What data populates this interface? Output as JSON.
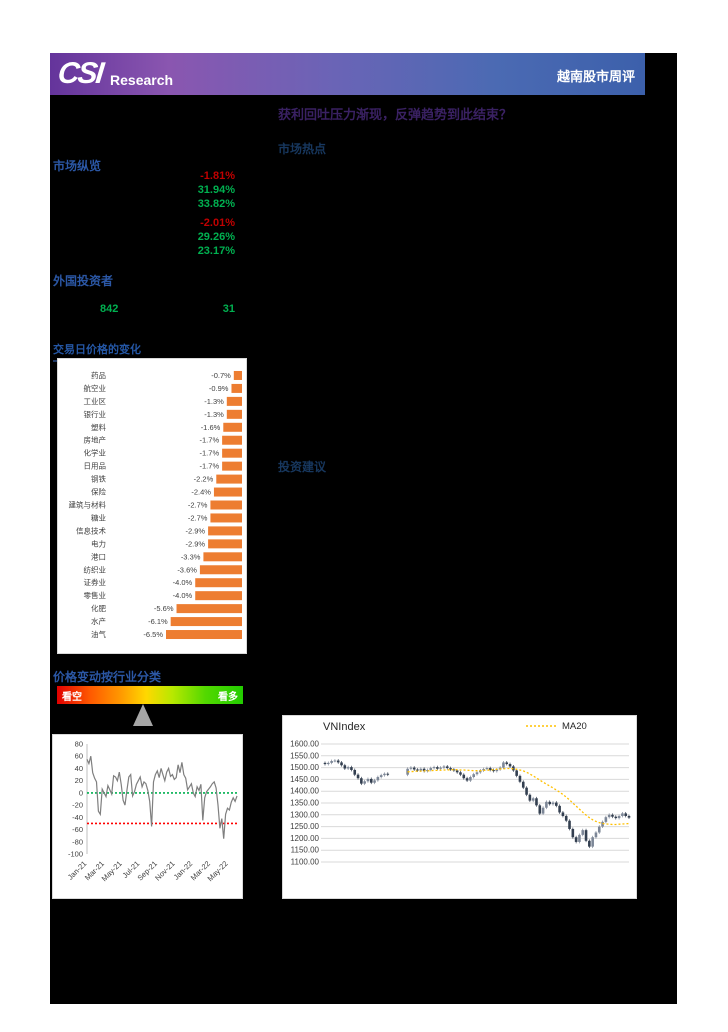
{
  "header": {
    "logo_primary": "CSI",
    "logo_secondary": "Research",
    "report_title": "越南股市周评"
  },
  "headline": "获利回吐压力渐现，反弹趋势到此结束？",
  "left_panel": {
    "market_overview": {
      "title": "市场纵览",
      "stats": [
        {
          "value": "-1.81%",
          "tone": "neg"
        },
        {
          "value": "31.94%",
          "tone": "pos"
        },
        {
          "value": "33.82%",
          "tone": "pos"
        },
        {
          "value": "-2.01%",
          "tone": "neg",
          "gap_before": true
        },
        {
          "value": "29.26%",
          "tone": "pos"
        },
        {
          "value": "23.17%",
          "tone": "pos"
        }
      ]
    },
    "foreign_investors": {
      "title": "外国投资者",
      "value_left": "842",
      "value_right": "31"
    },
    "sector_change_title": "交易日价格的变化",
    "sentiment_gauge": {
      "title": "价格变动按行业分类",
      "left_label": "看空",
      "right_label": "看多",
      "pointer_percent": 46
    }
  },
  "right_panel": {
    "hotspot_title": "市场热点",
    "advice_title": "投资建议"
  },
  "colors": {
    "negative": "#c00000",
    "positive": "#00b050",
    "accent_blue": "#2456a4",
    "bar_orange": "#ed7d31",
    "ma20_gold": "#ffc000",
    "candle_dark": "#333f50",
    "candle_light": "#7d8797",
    "series_gray": "#7f7f7f"
  },
  "chart_data": [
    {
      "id": "sector_bar",
      "type": "bar",
      "orientation": "horizontal",
      "axis_zero": "right",
      "bar_color": "#ed7d31",
      "categories": [
        "药品",
        "航空业",
        "工业区",
        "银行业",
        "塑料",
        "房地产",
        "化学业",
        "日用品",
        "钢铁",
        "保险",
        "建筑与材料",
        "糖业",
        "信息技术",
        "电力",
        "港口",
        "纺织业",
        "证券业",
        "零售业",
        "化肥",
        "水产",
        "油气"
      ],
      "values": [
        -0.7,
        -0.9,
        -1.3,
        -1.3,
        -1.6,
        -1.7,
        -1.7,
        -1.7,
        -2.2,
        -2.4,
        -2.7,
        -2.7,
        -2.9,
        -2.9,
        -3.3,
        -3.6,
        -4.0,
        -4.0,
        -5.6,
        -6.1,
        -6.5
      ],
      "labels": [
        "-0.7%",
        "-0.9%",
        "-1.3%",
        "-1.3%",
        "-1.6%",
        "-1.7%",
        "-1.7%",
        "-1.7%",
        "-2.2%",
        "-2.4%",
        "-2.7%",
        "-2.7%",
        "-2.9%",
        "-2.9%",
        "-3.3%",
        "-3.6%",
        "-4.0%",
        "-4.0%",
        "-5.6%",
        "-6.1%",
        "-6.5%"
      ],
      "xlim": [
        -6.5,
        0
      ]
    },
    {
      "id": "momentum",
      "type": "line",
      "ylim": [
        -100,
        80
      ],
      "y_ticks": [
        80,
        60,
        40,
        20,
        0,
        -20,
        -40,
        -60,
        -80,
        -100
      ],
      "x_ticks": [
        "Jan-21",
        "Mar-21",
        "May-21",
        "Jul-21",
        "Sep-21",
        "Nov-21",
        "Jan-22",
        "Mar-22",
        "May-22"
      ],
      "x_tick_month_span": 17,
      "ref_lines": [
        {
          "y": 0,
          "color": "#00b050",
          "style": "dotted"
        },
        {
          "y": -50,
          "color": "#ff0000",
          "style": "dotted"
        }
      ],
      "series": [
        {
          "name": "breadth-momentum",
          "color": "#7f7f7f",
          "values": [
            55,
            48,
            60,
            33,
            24,
            18,
            -30,
            -35,
            6,
            0,
            -6,
            12,
            5,
            -2,
            28,
            26,
            20,
            34,
            14,
            -12,
            -20,
            4,
            26,
            30,
            -5,
            2,
            14,
            20,
            26,
            10,
            18,
            15,
            4,
            -14,
            -55,
            18,
            30,
            36,
            25,
            40,
            30,
            20,
            34,
            40,
            27,
            30,
            22,
            25,
            46,
            33,
            50,
            30,
            24,
            5,
            10,
            15,
            0,
            -6,
            10,
            4,
            14,
            -45,
            -8,
            2,
            6,
            10,
            15,
            18,
            8,
            -20,
            -58,
            -42,
            -75,
            -35,
            -25,
            -28,
            -15,
            -8,
            -14,
            -5
          ]
        }
      ],
      "grid": false,
      "legend": null
    },
    {
      "id": "vnindex",
      "type": "candlestick",
      "title": "VNIndex",
      "legend": [
        {
          "name": "MA20",
          "color": "#ffc000",
          "style": "dotted"
        }
      ],
      "legend_position": "top-right",
      "ylim": [
        1100,
        1600
      ],
      "y_ticks": [
        "1600.00",
        "1550.00",
        "1500.00",
        "1450.00",
        "1400.00",
        "1350.00",
        "1300.00",
        "1250.00",
        "1200.00",
        "1150.00",
        "1100.00"
      ],
      "grid": true,
      "series": [
        {
          "name": "price",
          "type": "candle",
          "values": [
            1515,
            1520,
            1528,
            1530,
            1522,
            1510,
            1496,
            1502,
            1490,
            1470,
            1455,
            1432,
            1442,
            1452,
            1436,
            1446,
            1460,
            1468,
            1474,
            1470,
            null,
            null,
            null,
            null,
            null,
            1495,
            1500,
            1492,
            1488,
            1495,
            1485,
            1490,
            1498,
            1502,
            1495,
            1500,
            1505,
            1498,
            1492,
            1488,
            1480,
            1470,
            1455,
            1445,
            1460,
            1472,
            1480,
            1488,
            1494,
            1498,
            1490,
            1485,
            1492,
            1500,
            1522,
            1515,
            1505,
            1488,
            1465,
            1440,
            1415,
            1385,
            1360,
            1370,
            1340,
            1305,
            1330,
            1355,
            1345,
            1352,
            1338,
            1310,
            1295,
            1275,
            1240,
            1205,
            1185,
            1215,
            1235,
            1190,
            1165,
            1205,
            1225,
            1250,
            1270,
            1290,
            1300,
            1292,
            1286,
            1295,
            1306,
            1295,
            1288
          ]
        },
        {
          "name": "MA20",
          "type": "line",
          "color": "#ffc000",
          "style": "dotted",
          "values": [
            null,
            null,
            null,
            null,
            null,
            null,
            null,
            null,
            null,
            null,
            null,
            null,
            null,
            null,
            null,
            null,
            null,
            null,
            null,
            null,
            null,
            null,
            null,
            null,
            null,
            1482,
            1483,
            1484,
            1485,
            1485,
            1486,
            1486,
            1487,
            1488,
            1488,
            1489,
            1490,
            1490,
            1491,
            1491,
            1491,
            1490,
            1490,
            1489,
            1488,
            1487,
            1487,
            1487,
            1488,
            1489,
            1490,
            1491,
            1493,
            1494,
            1495,
            1496,
            1496,
            1495,
            1493,
            1490,
            1486,
            1480,
            1473,
            1465,
            1456,
            1447,
            1438,
            1430,
            1422,
            1414,
            1405,
            1396,
            1386,
            1375,
            1363,
            1350,
            1337,
            1324,
            1311,
            1299,
            1288,
            1279,
            1272,
            1267,
            1263,
            1261,
            1260,
            1259,
            1259,
            1260,
            1261,
            1262,
            1263
          ]
        }
      ]
    }
  ]
}
